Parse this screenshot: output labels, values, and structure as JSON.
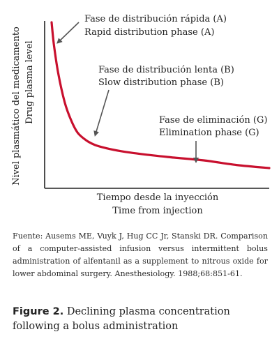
{
  "chart_data": {
    "type": "line",
    "title": "",
    "ylabel": [
      "Nivel plasmático del medicamento",
      "Drug plasma level"
    ],
    "xlabel": [
      "Tiempo desde la inyección",
      "Time from injection"
    ],
    "grid": false,
    "series": [
      {
        "color": "#c8102e",
        "x": [
          0.0,
          0.01,
          0.03,
          0.06,
          0.09,
          0.12,
          0.16,
          0.2,
          0.25,
          0.32,
          0.42,
          0.55,
          0.7,
          0.85,
          1.0
        ],
        "y": [
          1.0,
          0.86,
          0.67,
          0.48,
          0.36,
          0.28,
          0.23,
          0.2,
          0.18,
          0.16,
          0.14,
          0.12,
          0.1,
          0.07,
          0.05
        ]
      }
    ],
    "annotations": [
      {
        "lines": [
          "Fase de distribución rápida (A)",
          "Rapid distribution phase (A)"
        ]
      },
      {
        "lines": [
          "Fase de distribución lenta (B)",
          "Slow distribution phase (B)"
        ]
      },
      {
        "lines": [
          "Fase de eliminación (G)",
          "Elimination phase (G)"
        ]
      }
    ]
  },
  "source_text": "Fuente: Ausems ME, Vuyk J, Hug CC Jr, Stanski DR. Comparison of a computer-assisted infusion versus intermittent bolus administration of alfentanil as a supplement to nitrous oxide for lower abdominal surgery. Anesthesiology. 1988;68:851-61.",
  "figure_caption": {
    "label": "Figure 2.",
    "text": "Declining plasma concentration following a bolus administration"
  }
}
